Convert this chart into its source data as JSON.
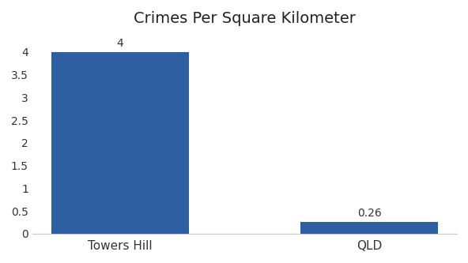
{
  "categories": [
    "Towers Hill",
    "QLD"
  ],
  "values": [
    4,
    0.26
  ],
  "bar_colors": [
    "#2e5fa3",
    "#2e5fa3"
  ],
  "title": "Crimes Per Square Kilometer",
  "title_fontsize": 14,
  "label_fontsize": 11,
  "bar_label_fontsize": 10,
  "bar_labels": [
    "4",
    "0.26"
  ],
  "ylim": [
    0,
    4.4
  ],
  "yticks": [
    0,
    0.5,
    1,
    1.5,
    2,
    2.5,
    3,
    3.5,
    4
  ],
  "background_color": "#ffffff",
  "bar_width": 0.55
}
